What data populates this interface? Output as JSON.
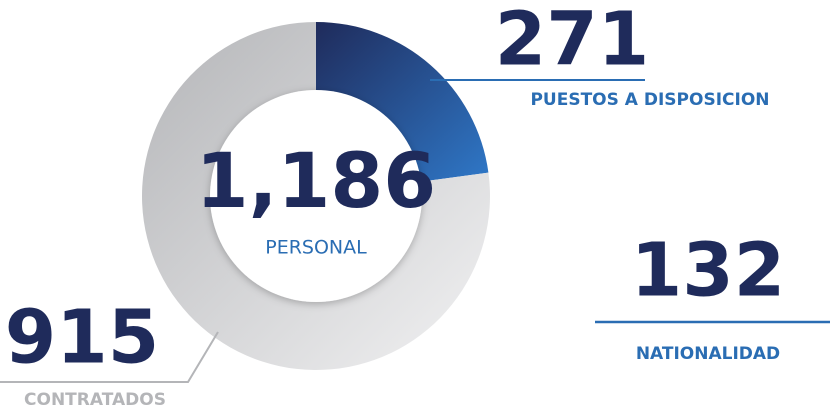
{
  "chart_data": {
    "type": "donut",
    "categories": [
      "PUESTOS A DISPOSICION",
      "CONTRATADOS"
    ],
    "values": [
      271,
      915
    ],
    "colors": [
      "#2f78c8",
      "#b4b5b8"
    ],
    "total": {
      "value": 1186,
      "label": "1,186"
    },
    "total_caption": "PERSONAL",
    "stat": {
      "value": 132,
      "label": "NATIONALIDAD"
    }
  }
}
